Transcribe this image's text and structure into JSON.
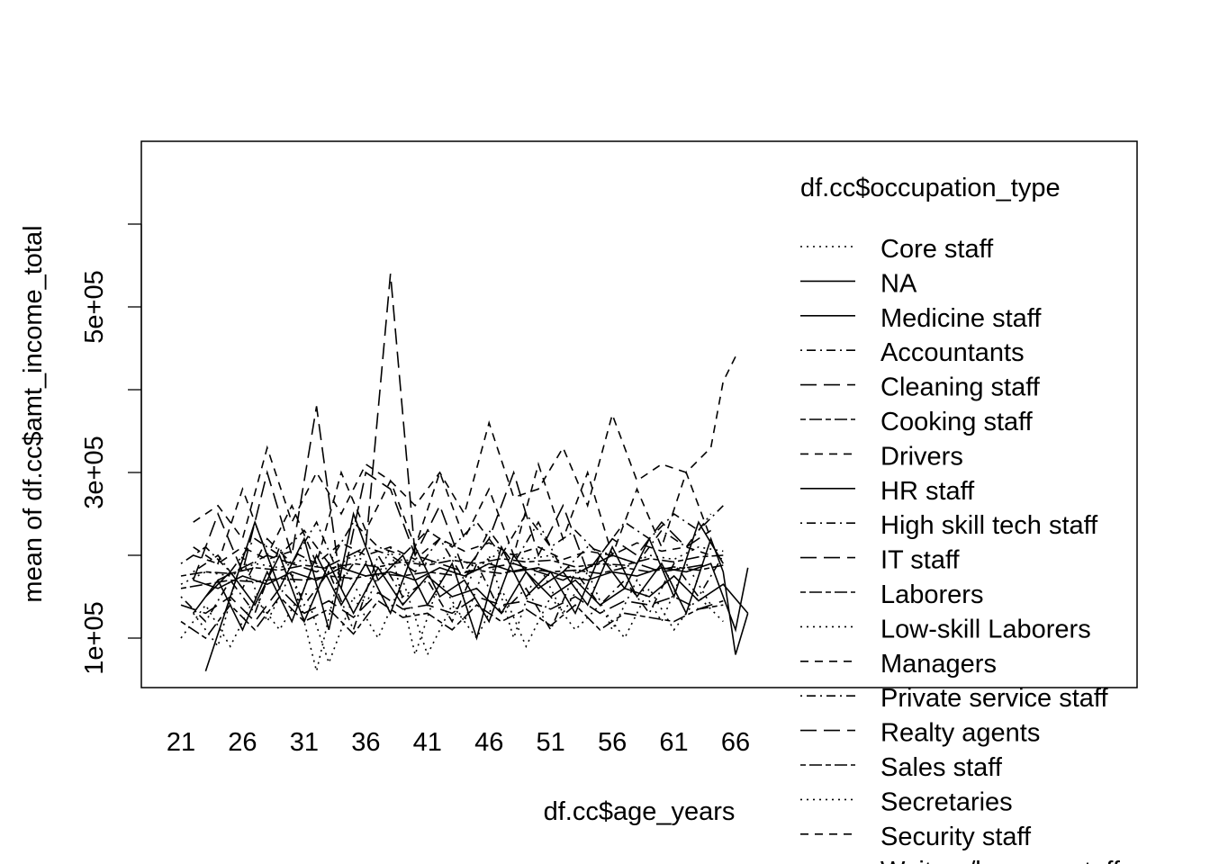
{
  "chart_data": {
    "type": "line",
    "xlabel": "df.cc$age_years",
    "ylabel": "mean of  df.cc$amt_income_total",
    "x_tick_labels": [
      "21",
      "26",
      "31",
      "36",
      "41",
      "46",
      "51",
      "56",
      "61",
      "66"
    ],
    "y_tick_labels": [
      "1e+05",
      "3e+05",
      "5e+05"
    ],
    "y_tick_values": [
      100000,
      200000,
      300000,
      400000,
      500000,
      600000
    ],
    "xlim": [
      21,
      68
    ],
    "ylim": [
      40000,
      700000
    ],
    "grid": false,
    "legend": {
      "title": "df.cc$occupation_type",
      "placement": "right",
      "entries": [
        {
          "label": "Core staff",
          "lty": "dotted"
        },
        {
          "label": "NA",
          "lty": "solid"
        },
        {
          "label": "Medicine staff",
          "lty": "solid"
        },
        {
          "label": "Accountants",
          "lty": "dotdash"
        },
        {
          "label": "Cleaning staff",
          "lty": "longdash"
        },
        {
          "label": "Cooking staff",
          "lty": "twodash"
        },
        {
          "label": "Drivers",
          "lty": "dashed"
        },
        {
          "label": "HR staff",
          "lty": "solid"
        },
        {
          "label": "High skill tech staff",
          "lty": "dotdash"
        },
        {
          "label": "IT staff",
          "lty": "longdash"
        },
        {
          "label": "Laborers",
          "lty": "twodash"
        },
        {
          "label": "Low-skill Laborers",
          "lty": "dotted"
        },
        {
          "label": "Managers",
          "lty": "dashed"
        },
        {
          "label": "Private service staff",
          "lty": "dotdash"
        },
        {
          "label": "Realty agents",
          "lty": "longdash"
        },
        {
          "label": "Sales staff",
          "lty": "twodash"
        },
        {
          "label": "Secretaries",
          "lty": "dotted"
        },
        {
          "label": "Security staff",
          "lty": "dashed"
        },
        {
          "label": "Waiters/barmen staff",
          "lty": "solid"
        }
      ]
    },
    "series": [
      {
        "name": "Core staff",
        "x": [
          21,
          23,
          25,
          27,
          29,
          31,
          33,
          35,
          37,
          39,
          41,
          43,
          45,
          47,
          49,
          51,
          53,
          55,
          57,
          59,
          61,
          63,
          65
        ],
        "values": [
          165000,
          180000,
          175000,
          190000,
          185000,
          195000,
          180000,
          200000,
          185000,
          195000,
          190000,
          200000,
          185000,
          205000,
          195000,
          200000,
          180000,
          190000,
          185000,
          200000,
          195000,
          210000,
          205000
        ]
      },
      {
        "name": "NA",
        "x": [
          22,
          24,
          26,
          28,
          30,
          32,
          34,
          36,
          38,
          40,
          42,
          44,
          46,
          48,
          50,
          52,
          54,
          56,
          58,
          60,
          62,
          64,
          66,
          67
        ],
        "values": [
          170000,
          160000,
          175000,
          165000,
          180000,
          170000,
          185000,
          175000,
          180000,
          170000,
          185000,
          175000,
          190000,
          180000,
          185000,
          175000,
          170000,
          180000,
          175000,
          185000,
          180000,
          190000,
          110000,
          185000
        ]
      },
      {
        "name": "Medicine staff",
        "x": [
          23,
          25,
          27,
          29,
          31,
          33,
          35,
          37,
          39,
          41,
          43,
          45,
          47,
          49,
          51,
          53,
          55,
          57,
          59,
          61,
          63,
          65,
          67
        ],
        "values": [
          150000,
          180000,
          140000,
          200000,
          120000,
          190000,
          130000,
          185000,
          140000,
          175000,
          150000,
          160000,
          130000,
          180000,
          150000,
          170000,
          140000,
          160000,
          150000,
          175000,
          145000,
          165000,
          130000
        ]
      },
      {
        "name": "Accountants",
        "x": [
          22,
          24,
          26,
          28,
          30,
          32,
          34,
          36,
          38,
          40,
          42,
          44,
          46,
          48,
          50,
          52,
          54,
          56,
          58,
          60,
          62,
          64
        ],
        "values": [
          180000,
          200000,
          160000,
          220000,
          190000,
          240000,
          170000,
          210000,
          200000,
          180000,
          220000,
          170000,
          230000,
          190000,
          240000,
          180000,
          210000,
          200000,
          190000,
          230000,
          210000,
          250000
        ]
      },
      {
        "name": "Cleaning staff",
        "x": [
          21,
          23,
          25,
          27,
          29,
          31,
          33,
          35,
          37,
          39,
          41,
          43,
          45,
          47,
          49,
          51,
          53,
          55,
          57,
          59,
          61,
          63,
          65
        ],
        "values": [
          140000,
          130000,
          150000,
          120000,
          160000,
          130000,
          145000,
          125000,
          155000,
          135000,
          140000,
          130000,
          150000,
          140000,
          145000,
          135000,
          150000,
          130000,
          145000,
          140000,
          150000,
          135000,
          145000
        ]
      },
      {
        "name": "Cooking staff",
        "x": [
          21,
          23,
          25,
          27,
          29,
          31,
          33,
          35,
          37,
          39,
          41,
          43,
          45,
          47,
          49,
          51,
          53,
          55,
          57,
          59,
          61,
          63,
          65
        ],
        "values": [
          120000,
          100000,
          140000,
          110000,
          150000,
          120000,
          135000,
          105000,
          145000,
          125000,
          130000,
          110000,
          140000,
          120000,
          135000,
          115000,
          140000,
          110000,
          130000,
          125000,
          120000,
          135000,
          140000
        ]
      },
      {
        "name": "Drivers",
        "x": [
          22,
          24,
          26,
          28,
          30,
          32,
          34,
          36,
          38,
          40,
          42,
          44,
          46,
          48,
          50,
          52,
          54,
          56,
          58,
          60,
          62,
          64
        ],
        "values": [
          200000,
          190000,
          210000,
          195000,
          205000,
          190000,
          215000,
          200000,
          210000,
          195000,
          220000,
          205000,
          215000,
          200000,
          210000,
          195000,
          205000,
          200000,
          215000,
          205000,
          210000,
          200000
        ]
      },
      {
        "name": "HR staff",
        "x": [
          23,
          25,
          27,
          29,
          31,
          33,
          35,
          37,
          39,
          41,
          43,
          45,
          47,
          49,
          51,
          53,
          55,
          57,
          59,
          61,
          63,
          65
        ],
        "values": [
          60000,
          150000,
          240000,
          160000,
          220000,
          110000,
          250000,
          170000,
          200000,
          140000,
          190000,
          100000,
          210000,
          150000,
          180000,
          130000,
          200000,
          160000,
          220000,
          150000,
          240000,
          190000
        ]
      },
      {
        "name": "High skill tech staff",
        "x": [
          21,
          23,
          25,
          27,
          29,
          31,
          33,
          35,
          37,
          39,
          41,
          43,
          45,
          47,
          49,
          51,
          53,
          55,
          57,
          59,
          61,
          63,
          65
        ],
        "values": [
          190000,
          210000,
          180000,
          220000,
          200000,
          230000,
          190000,
          240000,
          210000,
          200000,
          230000,
          210000,
          240000,
          200000,
          250000,
          210000,
          230000,
          200000,
          240000,
          220000,
          250000,
          230000,
          260000
        ]
      },
      {
        "name": "IT staff",
        "x": [
          22,
          24,
          26,
          28,
          30,
          32,
          34,
          36,
          38,
          40,
          42,
          44,
          46,
          48,
          50,
          52,
          54,
          56,
          58,
          60,
          62,
          64
        ],
        "values": [
          170000,
          250000,
          180000,
          300000,
          200000,
          380000,
          160000,
          300000,
          280000,
          200000,
          260000,
          180000,
          220000,
          300000,
          200000,
          260000,
          180000,
          220000,
          200000,
          240000,
          210000,
          230000
        ]
      },
      {
        "name": "Laborers",
        "x": [
          21,
          23,
          25,
          27,
          29,
          31,
          33,
          35,
          37,
          39,
          41,
          43,
          45,
          47,
          49,
          51,
          53,
          55,
          57,
          59,
          61,
          63,
          65
        ],
        "values": [
          160000,
          165000,
          170000,
          168000,
          172000,
          170000,
          175000,
          172000,
          178000,
          175000,
          180000,
          176000,
          182000,
          178000,
          184000,
          180000,
          182000,
          178000,
          185000,
          180000,
          186000,
          182000,
          188000
        ]
      },
      {
        "name": "Low-skill Laborers",
        "x": [
          21,
          23,
          25,
          27,
          29,
          31,
          33,
          35,
          37,
          39,
          41,
          43,
          45,
          47,
          49,
          51,
          53,
          55,
          57,
          59,
          61,
          63,
          65
        ],
        "values": [
          100000,
          140000,
          90000,
          150000,
          110000,
          160000,
          70000,
          150000,
          100000,
          170000,
          80000,
          140000,
          100000,
          160000,
          90000,
          150000,
          110000,
          140000,
          100000,
          160000,
          110000,
          150000,
          120000
        ]
      },
      {
        "name": "Managers",
        "x": [
          22,
          24,
          26,
          28,
          30,
          32,
          34,
          36,
          38,
          40,
          42,
          44,
          46,
          48,
          50,
          52,
          54,
          56,
          58,
          60,
          62,
          64,
          65,
          66
        ],
        "values": [
          240000,
          260000,
          220000,
          330000,
          240000,
          300000,
          250000,
          310000,
          290000,
          260000,
          300000,
          250000,
          360000,
          270000,
          280000,
          330000,
          260000,
          370000,
          290000,
          310000,
          300000,
          330000,
          410000,
          440000
        ]
      },
      {
        "name": "Private service staff",
        "x": [
          21,
          23,
          25,
          27,
          29,
          31,
          33,
          35,
          37,
          39,
          41,
          43,
          45,
          47,
          49,
          51,
          53,
          55,
          57,
          59,
          61,
          63,
          65
        ],
        "values": [
          150000,
          120000,
          170000,
          130000,
          210000,
          140000,
          180000,
          110000,
          200000,
          150000,
          170000,
          120000,
          190000,
          130000,
          160000,
          110000,
          180000,
          140000,
          170000,
          130000,
          190000,
          150000,
          200000
        ]
      },
      {
        "name": "Realty agents",
        "x": [
          24,
          28,
          32,
          36,
          38,
          40,
          44,
          48,
          52,
          56,
          60,
          64
        ],
        "values": [
          170000,
          200000,
          180000,
          210000,
          540000,
          200000,
          180000,
          190000,
          170000,
          200000,
          180000,
          190000
        ]
      },
      {
        "name": "Sales staff",
        "x": [
          21,
          23,
          25,
          27,
          29,
          31,
          33,
          35,
          37,
          39,
          41,
          43,
          45,
          47,
          49,
          51,
          53,
          55,
          57,
          59,
          61,
          63,
          65
        ],
        "values": [
          175000,
          180000,
          178000,
          185000,
          182000,
          188000,
          184000,
          190000,
          186000,
          192000,
          188000,
          194000,
          190000,
          196000,
          192000,
          194000,
          186000,
          190000,
          188000,
          196000,
          192000,
          198000,
          200000
        ]
      },
      {
        "name": "Secretaries",
        "x": [
          22,
          24,
          26,
          28,
          30,
          32,
          34,
          36,
          38,
          40,
          42,
          44,
          46,
          48,
          50,
          52,
          54,
          56,
          58,
          60,
          62,
          64
        ],
        "values": [
          130000,
          90000,
          200000,
          120000,
          180000,
          60000,
          190000,
          140000,
          210000,
          80000,
          170000,
          120000,
          200000,
          100000,
          190000,
          130000,
          180000,
          110000,
          170000,
          120000,
          190000,
          140000
        ]
      },
      {
        "name": "Security staff",
        "x": [
          22,
          24,
          26,
          28,
          30,
          32,
          34,
          36,
          38,
          40,
          42,
          44,
          46,
          48,
          50,
          52,
          54,
          56,
          58,
          60,
          62,
          64
        ],
        "values": [
          210000,
          190000,
          280000,
          200000,
          260000,
          190000,
          300000,
          230000,
          290000,
          210000,
          300000,
          220000,
          280000,
          200000,
          310000,
          220000,
          300000,
          200000,
          280000,
          210000,
          300000,
          220000
        ]
      },
      {
        "name": "Waiters/barmen staff",
        "x": [
          22,
          24,
          26,
          28,
          30,
          32,
          34,
          36,
          38,
          40,
          42,
          44,
          46,
          48,
          50,
          52,
          54,
          56,
          58,
          60,
          62,
          64,
          65,
          66,
          67
        ],
        "values": [
          130000,
          170000,
          110000,
          180000,
          120000,
          200000,
          140000,
          190000,
          130000,
          210000,
          150000,
          170000,
          120000,
          200000,
          160000,
          180000,
          140000,
          210000,
          150000,
          190000,
          130000,
          220000,
          180000,
          80000,
          130000
        ]
      }
    ]
  }
}
